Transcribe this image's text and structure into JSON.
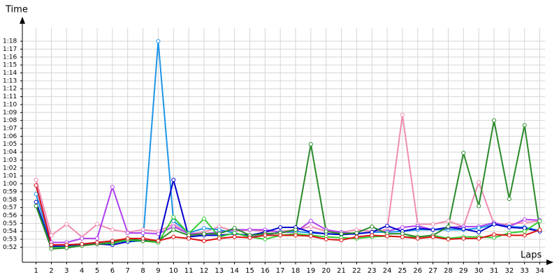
{
  "chart_data": {
    "type": "line",
    "y_label": "Time",
    "x_label": "Laps",
    "x": [
      1,
      2,
      3,
      4,
      5,
      6,
      7,
      8,
      9,
      10,
      11,
      12,
      13,
      14,
      15,
      16,
      17,
      18,
      19,
      20,
      21,
      22,
      23,
      24,
      25,
      26,
      27,
      28,
      29,
      30,
      31,
      32,
      33,
      34
    ],
    "xlim": [
      0.1,
      34.8
    ],
    "xticks": [
      1,
      2,
      3,
      4,
      5,
      6,
      7,
      8,
      9,
      10,
      11,
      12,
      13,
      14,
      15,
      16,
      17,
      18,
      19,
      20,
      21,
      22,
      23,
      24,
      25,
      26,
      27,
      28,
      29,
      30,
      31,
      32,
      33,
      34
    ],
    "ylim": [
      50.1,
      81
    ],
    "yticks": [
      {
        "value": 52,
        "label": "0:52"
      },
      {
        "value": 53,
        "label": "0:53"
      },
      {
        "value": 54,
        "label": "0:54"
      },
      {
        "value": 55,
        "label": "0:55"
      },
      {
        "value": 56,
        "label": "0:56"
      },
      {
        "value": 57,
        "label": "0:57"
      },
      {
        "value": 58,
        "label": "0:58"
      },
      {
        "value": 59,
        "label": "0:59"
      },
      {
        "value": 60,
        "label": "1:00"
      },
      {
        "value": 61,
        "label": "1:01"
      },
      {
        "value": 62,
        "label": "1:02"
      },
      {
        "value": 63,
        "label": "1:03"
      },
      {
        "value": 64,
        "label": "1:04"
      },
      {
        "value": 65,
        "label": "1:05"
      },
      {
        "value": 66,
        "label": "1:06"
      },
      {
        "value": 67,
        "label": "1:07"
      },
      {
        "value": 68,
        "label": "1:08"
      },
      {
        "value": 69,
        "label": "1:09"
      },
      {
        "value": 70,
        "label": "1:10"
      },
      {
        "value": 71,
        "label": "1:11"
      },
      {
        "value": 72,
        "label": "1:12"
      },
      {
        "value": 73,
        "label": "1:13"
      },
      {
        "value": 74,
        "label": "1:14"
      },
      {
        "value": 75,
        "label": "1:15"
      },
      {
        "value": 76,
        "label": "1:16"
      },
      {
        "value": 77,
        "label": "1:17"
      },
      {
        "value": 78,
        "label": "1:18"
      }
    ],
    "grid": true,
    "series": [
      {
        "color": "#f08cb0",
        "values": [
          60.5,
          53.5,
          54.9,
          53.3,
          54.9,
          54.2,
          53.9,
          54.2,
          54.0,
          54.9,
          53.7,
          53.9,
          54.6,
          54.0,
          54.2,
          54.0,
          54.0,
          54.2,
          54.6,
          54.0,
          53.9,
          54.2,
          54.0,
          54.2,
          68.7,
          54.9,
          54.9,
          55.3,
          54.6,
          60.2,
          54.9,
          54.9,
          55.1,
          55.3
        ]
      },
      {
        "color": "#b040ee",
        "values": [
          59.8,
          52.6,
          52.6,
          53.1,
          53.1,
          59.6,
          53.8,
          53.8,
          53.7,
          54.6,
          53.7,
          53.7,
          53.9,
          54.2,
          54.2,
          54.2,
          53.9,
          53.9,
          55.3,
          54.2,
          53.9,
          53.7,
          53.9,
          54.0,
          54.5,
          54.7,
          54.2,
          54.5,
          54.6,
          54.6,
          55.1,
          54.6,
          55.5,
          55.4
        ]
      },
      {
        "color": "#1e96e6",
        "values": [
          58.7,
          52.3,
          52.3,
          52.4,
          52.6,
          52.8,
          52.7,
          52.8,
          78.0,
          55.3,
          53.8,
          54.4,
          54.2,
          53.8,
          53.3,
          53.5,
          53.9,
          54.0,
          53.8,
          53.7,
          53.6,
          53.7,
          53.9,
          53.9,
          54.0,
          54.2,
          54.2,
          54.2,
          54.2,
          54.4,
          54.9,
          54.6,
          54.5,
          54.1
        ]
      },
      {
        "color": "#0000cc",
        "values": [
          57.7,
          52.1,
          52.1,
          52.4,
          52.4,
          52.3,
          52.7,
          52.9,
          52.6,
          60.5,
          53.3,
          53.5,
          53.5,
          53.7,
          53.5,
          53.9,
          54.5,
          54.5,
          53.9,
          53.7,
          53.6,
          53.7,
          53.9,
          54.7,
          54.0,
          54.4,
          54.2,
          54.5,
          54.3,
          53.9,
          54.9,
          54.5,
          54.4,
          54.0
        ]
      },
      {
        "color": "#33cc33",
        "values": [
          57.2,
          51.9,
          52.0,
          52.2,
          52.4,
          52.5,
          52.9,
          52.8,
          52.6,
          55.8,
          53.7,
          55.6,
          53.3,
          53.8,
          53.3,
          53.0,
          53.5,
          53.7,
          53.5,
          53.3,
          53.2,
          53.1,
          53.3,
          53.4,
          53.3,
          53.3,
          53.5,
          53.1,
          53.3,
          53.3,
          53.2,
          53.8,
          54.0,
          55.3
        ]
      },
      {
        "color": "#2a8a2a",
        "values": [
          57.2,
          51.8,
          51.9,
          52.2,
          52.4,
          52.6,
          53.1,
          52.8,
          52.8,
          54.2,
          53.5,
          53.7,
          53.7,
          54.4,
          53.5,
          53.7,
          53.8,
          54.2,
          65.0,
          54.0,
          53.7,
          53.8,
          54.6,
          53.7,
          53.7,
          53.3,
          53.5,
          54.6,
          63.9,
          57.2,
          68.0,
          58.1,
          67.4,
          54.2
        ]
      },
      {
        "color": "#dd1111",
        "values": [
          59.8,
          52.3,
          52.3,
          52.4,
          52.6,
          52.8,
          53.1,
          53.1,
          52.8,
          53.3,
          53.1,
          52.8,
          53.1,
          53.3,
          53.2,
          53.5,
          53.5,
          53.5,
          53.4,
          53.0,
          52.9,
          53.3,
          53.5,
          53.4,
          53.3,
          53.1,
          53.3,
          53.0,
          53.1,
          53.1,
          53.6,
          53.5,
          53.5,
          54.2
        ]
      }
    ]
  }
}
